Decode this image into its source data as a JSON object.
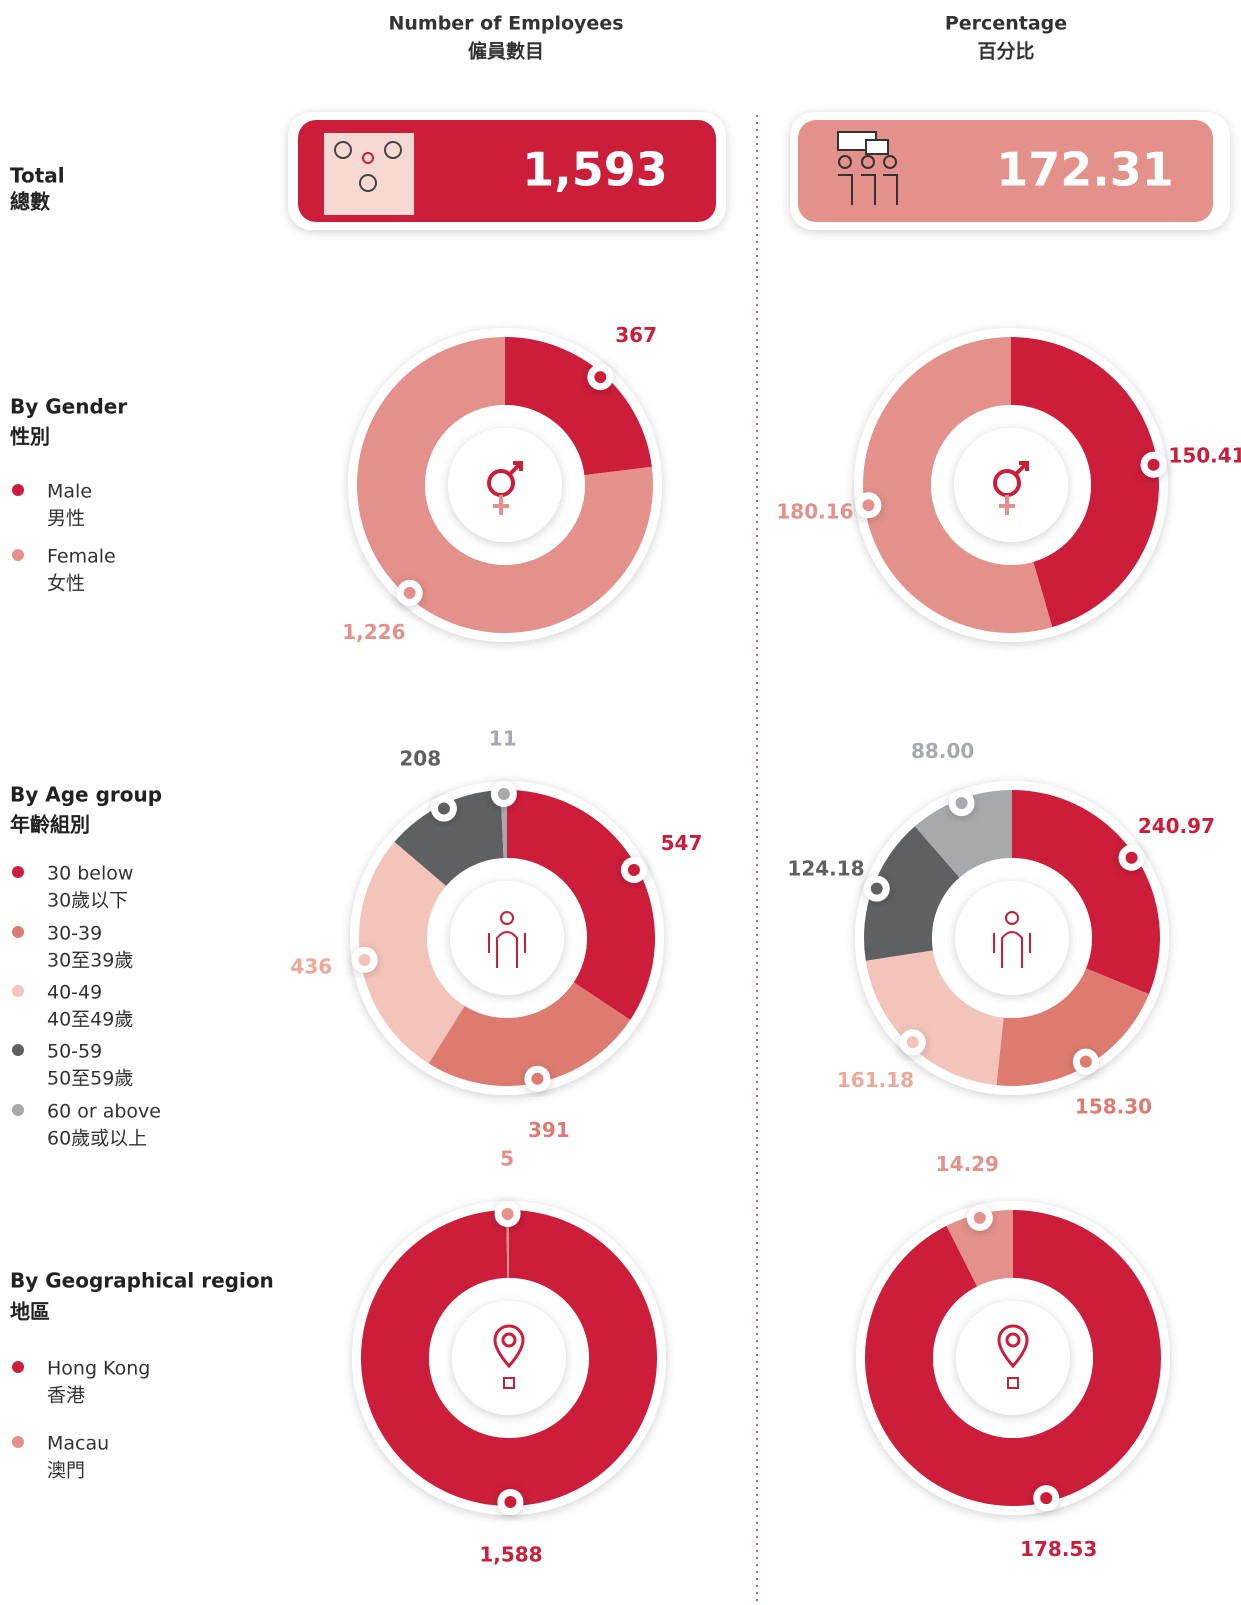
{
  "columns": [
    {
      "title": "Number of Employees",
      "title_zh": "僱員數目"
    },
    {
      "title": "Percentage",
      "title_zh": "百分比"
    }
  ],
  "totals": {
    "values": [
      1593,
      172.31
    ],
    "value_labels": [
      "1,593",
      "172.31"
    ]
  },
  "rows": [
    {
      "label": "Total",
      "label_zh": "總數"
    },
    {
      "label": "By Gender",
      "label_zh": "性別",
      "legend": [
        {
          "name": "Male",
          "name_zh": "男性",
          "color": "#cc1d3a"
        },
        {
          "name": "Female",
          "name_zh": "女性",
          "color": "#e3918a"
        }
      ]
    },
    {
      "label": "By Age group",
      "label_zh": "年齡組別",
      "legend": [
        {
          "name": "30 below",
          "name_zh": "30歲以下",
          "color": "#cc1d3a"
        },
        {
          "name": "30-39",
          "name_zh": "30至39歲",
          "color": "#de7b70"
        },
        {
          "name": "40-49",
          "name_zh": "40至49歲",
          "color": "#f2c4ba"
        },
        {
          "name": "50-59",
          "name_zh": "50至59歲",
          "color": "#5f6062"
        },
        {
          "name": "60 or above",
          "name_zh": "60歲或以上",
          "color": "#a7a9ac"
        }
      ]
    },
    {
      "label": "By Geographical region",
      "label_zh": "地區",
      "legend": [
        {
          "name": "Hong Kong",
          "name_zh": "香港",
          "color": "#cc1d3a"
        },
        {
          "name": "Macau",
          "name_zh": "澳門",
          "color": "#e3918a"
        }
      ]
    }
  ],
  "chart_data": [
    {
      "type": "donut",
      "values": [
        367,
        1226
      ],
      "value_labels": [
        "367",
        "1,226"
      ]
    },
    {
      "type": "donut",
      "values": [
        150.41,
        180.16
      ]
    },
    {
      "type": "donut",
      "values": [
        547,
        391,
        436,
        208,
        11
      ]
    },
    {
      "type": "donut",
      "values": [
        240.97,
        158.3,
        161.18,
        124.18,
        88
      ],
      "value_labels": [
        "240.97",
        "158.30",
        "161.18",
        "124.18",
        "88.00"
      ]
    },
    {
      "type": "donut",
      "values": [
        1588,
        5
      ],
      "value_labels": [
        "1,588",
        "5"
      ]
    },
    {
      "type": "donut",
      "values": [
        178.53,
        14.29
      ]
    }
  ]
}
